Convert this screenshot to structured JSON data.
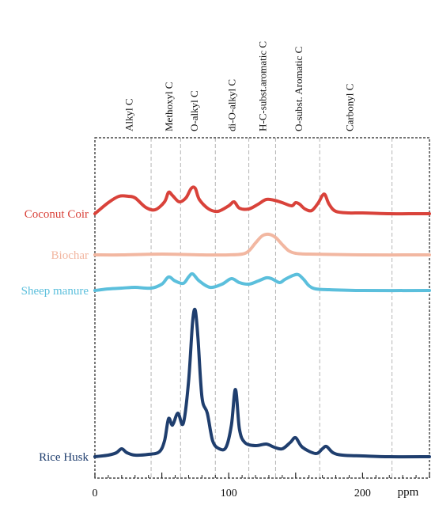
{
  "chart_data": {
    "type": "line",
    "title": "",
    "xlabel": "ppm",
    "ylabel": "",
    "xlim": [
      0,
      250
    ],
    "x_ticks": [
      0,
      100,
      200
    ],
    "grid": "vertical dashed lines at region boundaries",
    "region_boundaries": [
      42,
      64,
      90,
      115,
      135,
      168,
      222
    ],
    "regions": [
      {
        "label": "Alkyl C",
        "center": 25
      },
      {
        "label": "Methoxyl C",
        "center": 55
      },
      {
        "label": "O-alkyl C",
        "center": 74
      },
      {
        "label": "di-O-alkyl C",
        "center": 102
      },
      {
        "label": "H-C-subst.aromatic C",
        "center": 125
      },
      {
        "label": "O-subst. Aromatic C",
        "center": 152
      },
      {
        "label": "Carbonyl C",
        "center": 190
      }
    ],
    "series": [
      {
        "name": "Coconut Coir",
        "color": "#d9423a",
        "offset": 270,
        "x": [
          0,
          10,
          18,
          25,
          30,
          38,
          45,
          52,
          55,
          58,
          63,
          68,
          72,
          75,
          78,
          85,
          92,
          100,
          104,
          108,
          115,
          122,
          128,
          134,
          140,
          147,
          150,
          153,
          157,
          162,
          167,
          170,
          172,
          175,
          180,
          190,
          200,
          220,
          240,
          250
        ],
        "y": [
          0,
          14,
          22,
          22,
          20,
          8,
          5,
          15,
          27,
          23,
          15,
          20,
          32,
          32,
          18,
          6,
          3,
          10,
          15,
          7,
          6,
          12,
          18,
          17,
          14,
          10,
          14,
          12,
          6,
          4,
          14,
          23,
          24,
          12,
          3,
          1,
          1,
          0,
          0,
          0
        ]
      },
      {
        "name": "Biochar",
        "color": "#f2b7a1",
        "offset": 322,
        "x": [
          0,
          20,
          50,
          80,
          100,
          110,
          115,
          120,
          125,
          130,
          135,
          140,
          145,
          150,
          160,
          200,
          250
        ],
        "y": [
          0,
          0,
          1,
          0,
          0,
          1,
          5,
          15,
          24,
          26,
          22,
          13,
          5,
          2,
          1,
          0,
          0
        ]
      },
      {
        "name": "Sheep manure",
        "color": "#5bbfdc",
        "offset": 367,
        "x": [
          0,
          10,
          20,
          30,
          42,
          50,
          55,
          60,
          66,
          70,
          73,
          78,
          86,
          95,
          102,
          108,
          115,
          122,
          128,
          132,
          138,
          142,
          148,
          152,
          156,
          160,
          165,
          175,
          200,
          250
        ],
        "y": [
          0,
          2,
          3,
          4,
          3,
          8,
          17,
          12,
          9,
          17,
          21,
          12,
          4,
          8,
          15,
          10,
          8,
          12,
          16,
          15,
          10,
          14,
          19,
          20,
          14,
          6,
          2,
          1,
          0,
          0
        ]
      },
      {
        "name": "Rice Husk",
        "color": "#1f3e6e",
        "offset": 577,
        "x": [
          0,
          10,
          16,
          20,
          24,
          30,
          40,
          48,
          52,
          55,
          58,
          62,
          66,
          70,
          73,
          75,
          77,
          80,
          84,
          88,
          93,
          98,
          102,
          105,
          108,
          112,
          120,
          128,
          134,
          140,
          146,
          150,
          155,
          165,
          170,
          173,
          178,
          185,
          200,
          220,
          250
        ],
        "y": [
          0,
          2,
          5,
          10,
          5,
          2,
          3,
          6,
          20,
          48,
          40,
          55,
          42,
          95,
          170,
          185,
          150,
          75,
          55,
          20,
          10,
          12,
          40,
          85,
          35,
          18,
          14,
          16,
          12,
          10,
          18,
          24,
          12,
          4,
          10,
          13,
          5,
          2,
          1,
          0,
          0
        ]
      }
    ]
  }
}
